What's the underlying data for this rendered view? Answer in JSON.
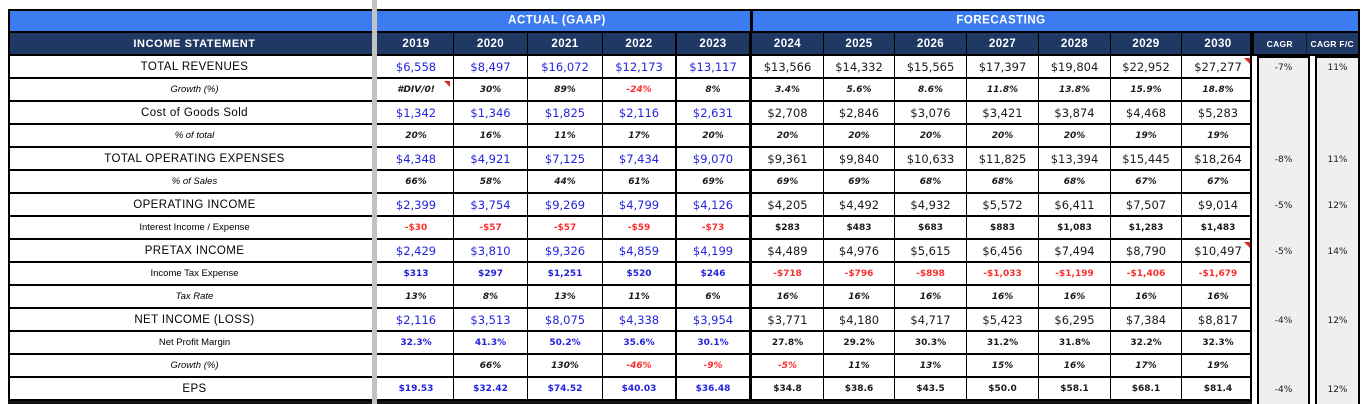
{
  "table": {
    "title": "INCOME STATEMENT",
    "section_headers": {
      "actual": "ACTUAL (GAAP)",
      "forecasting": "FORECASTING"
    },
    "years_actual": [
      "2019",
      "2020",
      "2021",
      "2022",
      "2023"
    ],
    "years_forecast": [
      "2024",
      "2025",
      "2026",
      "2027",
      "2028",
      "2029",
      "2030"
    ],
    "cagr_columns": [
      "CAGR",
      "CAGR F/C"
    ],
    "colors": {
      "navy": "#1f3864",
      "blue_band": "#3c7bf0",
      "value_blue": "#2323dd",
      "value_black": "#1a1a1a",
      "negative_red": "#fb2e2e",
      "cagr_bg": "#efefee",
      "pane_divider": "#c2c2c2"
    },
    "rows": [
      {
        "label": "TOTAL REVENUES",
        "kind": "major",
        "values": [
          "$6,558",
          "$8,497",
          "$16,072",
          "$12,173",
          "$13,117",
          "$13,566",
          "$14,332",
          "$15,565",
          "$17,397",
          "$19,804",
          "$22,952",
          "$27,277"
        ],
        "colors": [
          "b",
          "b",
          "b",
          "b",
          "b",
          "k",
          "k",
          "k",
          "k",
          "k",
          "k",
          "k"
        ],
        "cagr": "-7%",
        "cagr_fc": "11%"
      },
      {
        "label": "Growth (%)",
        "kind": "pct",
        "values": [
          "#DIV/0!",
          "30%",
          "89%",
          "-24%",
          "8%",
          "3.4%",
          "5.6%",
          "8.6%",
          "11.8%",
          "13.8%",
          "15.9%",
          "18.8%"
        ],
        "colors": [
          "k",
          "k",
          "k",
          "r",
          "k",
          "k",
          "k",
          "k",
          "k",
          "k",
          "k",
          "k"
        ]
      },
      {
        "label": "Cost of Goods Sold",
        "kind": "major",
        "values": [
          "$1,342",
          "$1,346",
          "$1,825",
          "$2,116",
          "$2,631",
          "$2,708",
          "$2,846",
          "$3,076",
          "$3,421",
          "$3,874",
          "$4,468",
          "$5,283"
        ],
        "colors": [
          "b",
          "b",
          "b",
          "b",
          "b",
          "k",
          "k",
          "k",
          "k",
          "k",
          "k",
          "k"
        ]
      },
      {
        "label": "% of total",
        "kind": "pct",
        "values": [
          "20%",
          "16%",
          "11%",
          "17%",
          "20%",
          "20%",
          "20%",
          "20%",
          "20%",
          "20%",
          "19%",
          "19%"
        ],
        "colors": [
          "k",
          "k",
          "k",
          "k",
          "k",
          "k",
          "k",
          "k",
          "k",
          "k",
          "k",
          "k"
        ]
      },
      {
        "label": "TOTAL OPERATING EXPENSES",
        "kind": "major",
        "values": [
          "$4,348",
          "$4,921",
          "$7,125",
          "$7,434",
          "$9,070",
          "$9,361",
          "$9,840",
          "$10,633",
          "$11,825",
          "$13,394",
          "$15,445",
          "$18,264"
        ],
        "colors": [
          "b",
          "b",
          "b",
          "b",
          "b",
          "k",
          "k",
          "k",
          "k",
          "k",
          "k",
          "k"
        ],
        "cagr": "-8%",
        "cagr_fc": "11%"
      },
      {
        "label": "% of Sales",
        "kind": "pct",
        "values": [
          "66%",
          "58%",
          "44%",
          "61%",
          "69%",
          "69%",
          "69%",
          "68%",
          "68%",
          "68%",
          "67%",
          "67%"
        ],
        "colors": [
          "k",
          "k",
          "k",
          "k",
          "k",
          "k",
          "k",
          "k",
          "k",
          "k",
          "k",
          "k"
        ]
      },
      {
        "label": "OPERATING INCOME",
        "kind": "major",
        "values": [
          "$2,399",
          "$3,754",
          "$9,269",
          "$4,799",
          "$4,126",
          "$4,205",
          "$4,492",
          "$4,932",
          "$5,572",
          "$6,411",
          "$7,507",
          "$9,014"
        ],
        "colors": [
          "b",
          "b",
          "b",
          "b",
          "b",
          "k",
          "k",
          "k",
          "k",
          "k",
          "k",
          "k"
        ],
        "cagr": "-5%",
        "cagr_fc": "12%"
      },
      {
        "label": "Interest Income / Expense",
        "kind": "small",
        "values": [
          "-$30",
          "-$57",
          "-$57",
          "-$59",
          "-$73",
          "$283",
          "$483",
          "$683",
          "$883",
          "$1,083",
          "$1,283",
          "$1,483"
        ],
        "colors": [
          "r",
          "r",
          "r",
          "r",
          "r",
          "k",
          "k",
          "k",
          "k",
          "k",
          "k",
          "k"
        ]
      },
      {
        "label": "PRETAX INCOME",
        "kind": "major",
        "values": [
          "$2,429",
          "$3,810",
          "$9,326",
          "$4,859",
          "$4,199",
          "$4,489",
          "$4,976",
          "$5,615",
          "$6,456",
          "$7,494",
          "$8,790",
          "$10,497"
        ],
        "colors": [
          "b",
          "b",
          "b",
          "b",
          "b",
          "k",
          "k",
          "k",
          "k",
          "k",
          "k",
          "k"
        ],
        "cagr": "-5%",
        "cagr_fc": "14%"
      },
      {
        "label": "Income Tax Expense",
        "kind": "small",
        "values": [
          "$313",
          "$297",
          "$1,251",
          "$520",
          "$246",
          "-$718",
          "-$796",
          "-$898",
          "-$1,033",
          "-$1,199",
          "-$1,406",
          "-$1,679"
        ],
        "colors": [
          "b",
          "b",
          "b",
          "b",
          "b",
          "r",
          "r",
          "r",
          "r",
          "r",
          "r",
          "r"
        ]
      },
      {
        "label": "Tax Rate",
        "kind": "pct",
        "values": [
          "13%",
          "8%",
          "13%",
          "11%",
          "6%",
          "16%",
          "16%",
          "16%",
          "16%",
          "16%",
          "16%",
          "16%"
        ],
        "colors": [
          "k",
          "k",
          "k",
          "k",
          "k",
          "k",
          "k",
          "k",
          "k",
          "k",
          "k",
          "k"
        ]
      },
      {
        "label": "NET INCOME (LOSS)",
        "kind": "major",
        "values": [
          "$2,116",
          "$3,513",
          "$8,075",
          "$4,338",
          "$3,954",
          "$3,771",
          "$4,180",
          "$4,717",
          "$5,423",
          "$6,295",
          "$7,384",
          "$8,817"
        ],
        "colors": [
          "b",
          "b",
          "b",
          "b",
          "b",
          "k",
          "k",
          "k",
          "k",
          "k",
          "k",
          "k"
        ],
        "cagr": "-4%",
        "cagr_fc": "12%"
      },
      {
        "label": "Net Profit Margin",
        "kind": "small",
        "values": [
          "32.3%",
          "41.3%",
          "50.2%",
          "35.6%",
          "30.1%",
          "27.8%",
          "29.2%",
          "30.3%",
          "31.2%",
          "31.8%",
          "32.2%",
          "32.3%"
        ],
        "colors": [
          "b",
          "b",
          "b",
          "b",
          "b",
          "k",
          "k",
          "k",
          "k",
          "k",
          "k",
          "k"
        ]
      },
      {
        "label": "Growth (%)",
        "kind": "pct",
        "values": [
          "",
          "66%",
          "130%",
          "-46%",
          "-9%",
          "-5%",
          "11%",
          "13%",
          "15%",
          "16%",
          "17%",
          "19%"
        ],
        "colors": [
          "k",
          "k",
          "k",
          "r",
          "r",
          "r",
          "k",
          "k",
          "k",
          "k",
          "k",
          "k"
        ]
      },
      {
        "label": "EPS",
        "kind": "eps",
        "values": [
          "$19.53",
          "$32.42",
          "$74.52",
          "$40.03",
          "$36.48",
          "$34.8",
          "$38.6",
          "$43.5",
          "$50.0",
          "$58.1",
          "$68.1",
          "$81.4"
        ],
        "colors": [
          "b",
          "b",
          "b",
          "b",
          "b",
          "k",
          "k",
          "k",
          "k",
          "k",
          "k",
          "k"
        ],
        "cagr": "-4%",
        "cagr_fc": "12%"
      }
    ],
    "note_markers": [
      {
        "row": 1,
        "col": 0
      },
      {
        "row": 0,
        "col": 11
      },
      {
        "row": 8,
        "col": 11
      }
    ]
  }
}
